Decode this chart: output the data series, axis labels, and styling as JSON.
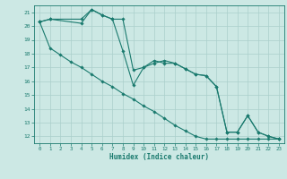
{
  "xlabel": "Humidex (Indice chaleur)",
  "bg_color": "#cce8e4",
  "line_color": "#1a7a6e",
  "grid_color": "#aacfcb",
  "xlim": [
    -0.5,
    23.5
  ],
  "ylim": [
    11.5,
    21.5
  ],
  "xticks": [
    0,
    1,
    2,
    3,
    4,
    5,
    6,
    7,
    8,
    9,
    10,
    11,
    12,
    13,
    14,
    15,
    16,
    17,
    18,
    19,
    20,
    21,
    22,
    23
  ],
  "yticks": [
    12,
    13,
    14,
    15,
    16,
    17,
    18,
    19,
    20,
    21
  ],
  "line1_x": [
    0,
    1,
    2,
    3,
    4,
    5,
    6,
    7,
    8,
    9,
    10,
    11,
    12,
    13,
    14,
    15,
    16,
    17,
    18,
    19,
    20,
    21,
    22,
    23
  ],
  "line1_y": [
    20.3,
    18.4,
    17.9,
    17.4,
    17.0,
    16.5,
    16.0,
    15.6,
    15.1,
    14.7,
    14.2,
    13.8,
    13.3,
    12.8,
    12.4,
    12.0,
    11.8,
    11.8,
    11.8,
    11.8,
    11.8,
    11.8,
    11.8,
    11.8
  ],
  "line2_x": [
    0,
    1,
    4,
    5,
    6,
    7,
    8,
    9,
    10,
    11,
    12,
    13,
    14,
    15,
    16,
    17,
    18,
    19,
    20,
    21,
    22,
    23
  ],
  "line2_y": [
    20.3,
    20.5,
    20.5,
    21.2,
    20.8,
    20.5,
    18.2,
    15.7,
    17.0,
    17.3,
    17.5,
    17.3,
    16.9,
    16.5,
    16.4,
    15.6,
    12.3,
    12.3,
    13.5,
    12.3,
    12.0,
    11.8
  ],
  "line3_x": [
    0,
    1,
    4,
    5,
    6,
    7,
    8,
    9,
    10,
    11,
    12,
    13,
    14,
    15,
    16,
    17,
    18,
    19,
    20,
    21,
    22,
    23
  ],
  "line3_y": [
    20.3,
    20.5,
    20.2,
    21.2,
    20.8,
    20.5,
    20.5,
    16.8,
    17.0,
    17.5,
    17.3,
    17.3,
    16.9,
    16.5,
    16.4,
    15.6,
    12.3,
    12.3,
    13.5,
    12.3,
    12.0,
    11.8
  ]
}
